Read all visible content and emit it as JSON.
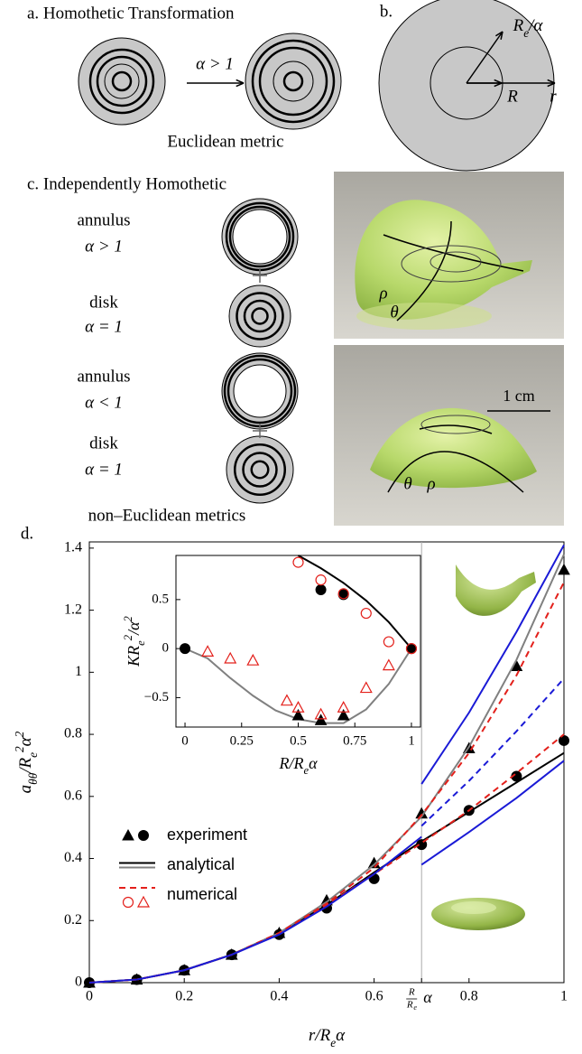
{
  "panel_a": {
    "label": "a. Homothetic Transformation",
    "arrow_label": "α > 1",
    "caption": "Euclidean metric"
  },
  "panel_b": {
    "label": "b.",
    "outer_radius": [
      {
        "t": "R"
      },
      {
        "t": "e",
        "s": "sub"
      },
      {
        "t": "/α"
      }
    ],
    "inner_radius": "R",
    "axis": "r"
  },
  "panel_c": {
    "label": "c. Independently Homothetic",
    "shapes": [
      {
        "name": "annulus",
        "condition": "α > 1"
      },
      {
        "name": "disk",
        "condition": "α = 1"
      },
      {
        "name": "annulus",
        "condition": "α < 1"
      },
      {
        "name": "disk",
        "condition": "α = 1"
      }
    ],
    "caption": "non–Euclidean metrics",
    "scale_bar": "1 cm",
    "photo1_labels": [
      "ρ",
      "θ"
    ],
    "photo2_labels": [
      "θ",
      "ρ"
    ]
  },
  "panel_d": {
    "label": "d."
  },
  "chart_data": [
    {
      "type": "line",
      "xlim": [
        0,
        1
      ],
      "ylim": [
        0,
        1.42
      ],
      "xticks": [
        0,
        0.2,
        0.4,
        0.6,
        0.8,
        1,
        {
          "value": 0.7,
          "label": [
            {
              "t": "R",
              "s": "num"
            },
            {
              "t": "R",
              "s": "den"
            },
            {
              "t": "e",
              "s": "den-sub"
            },
            {
              "t": "α"
            }
          ]
        }
      ],
      "yticks": [
        0,
        0.2,
        0.4,
        0.6,
        0.8,
        1,
        1.2,
        1.4
      ],
      "xlabel": [
        {
          "t": "r/R"
        },
        {
          "t": "e",
          "s": "sub"
        },
        {
          "t": "α"
        }
      ],
      "ylabel": [
        {
          "t": "a"
        },
        {
          "t": "θθ",
          "s": "sub"
        },
        {
          "t": "/R"
        },
        {
          "t": "e",
          "s": "sub"
        },
        {
          "t": "2",
          "s": "sup"
        },
        {
          "t": "α"
        },
        {
          "t": "2",
          "s": "sup"
        }
      ],
      "vline": 0.7,
      "series": [
        {
          "name": "experiment",
          "color": "#000000",
          "marker": "triangle",
          "x": [
            0,
            0.1,
            0.2,
            0.3,
            0.4,
            0.5,
            0.6,
            0.7,
            0.8,
            0.9,
            1
          ],
          "values": [
            0,
            0.01,
            0.04,
            0.09,
            0.16,
            0.265,
            0.385,
            0.545,
            0.755,
            1.02,
            1.33
          ]
        },
        {
          "name": "experiment",
          "color": "#000000",
          "marker": "circle",
          "x": [
            0,
            0.1,
            0.2,
            0.3,
            0.4,
            0.5,
            0.6,
            0.7,
            0.8,
            0.9,
            1
          ],
          "values": [
            0,
            0.01,
            0.04,
            0.09,
            0.155,
            0.24,
            0.335,
            0.445,
            0.555,
            0.665,
            0.78
          ]
        },
        {
          "name": "analytical",
          "color": "#000000",
          "line": true,
          "x": [
            0,
            0.1,
            0.2,
            0.3,
            0.4,
            0.5,
            0.6,
            0.7,
            0.8,
            0.9,
            1
          ],
          "values": [
            0,
            0.01,
            0.04,
            0.09,
            0.16,
            0.25,
            0.355,
            0.455,
            0.55,
            0.645,
            0.74
          ]
        },
        {
          "name": "analytical",
          "color": "#808080",
          "line": true,
          "x": [
            0,
            0.1,
            0.2,
            0.3,
            0.4,
            0.5,
            0.6,
            0.7,
            0.8,
            0.9,
            1
          ],
          "values": [
            0,
            0.01,
            0.04,
            0.09,
            0.16,
            0.26,
            0.38,
            0.535,
            0.76,
            1.04,
            1.38
          ]
        },
        {
          "name": "numerical",
          "color": "#e3201b",
          "line": true,
          "dash": true,
          "x": [
            0,
            0.1,
            0.2,
            0.3,
            0.4,
            0.5,
            0.6,
            0.7,
            0.8,
            0.9,
            1
          ],
          "values": [
            0,
            0.01,
            0.04,
            0.09,
            0.16,
            0.255,
            0.37,
            0.54,
            0.74,
            0.99,
            1.29
          ]
        },
        {
          "name": "numerical",
          "color": "#e3201b",
          "line": true,
          "dash": true,
          "x": [
            0,
            0.1,
            0.2,
            0.3,
            0.4,
            0.5,
            0.6,
            0.7,
            0.8,
            0.9,
            1
          ],
          "values": [
            0,
            0.01,
            0.04,
            0.09,
            0.16,
            0.25,
            0.35,
            0.45,
            0.555,
            0.675,
            0.8
          ]
        },
        {
          "color": "#1a1ad6",
          "line": true,
          "x": [
            0,
            0.1,
            0.2,
            0.3,
            0.4,
            0.5,
            0.6,
            0.7
          ],
          "values": [
            0,
            0.01,
            0.04,
            0.09,
            0.155,
            0.245,
            0.35,
            0.47
          ]
        },
        {
          "color": "#1a1ad6",
          "line": true,
          "x": [
            0.7,
            0.8,
            0.9,
            1
          ],
          "values": [
            0.64,
            0.87,
            1.13,
            1.41
          ]
        },
        {
          "color": "#1a1ad6",
          "line": true,
          "dash": true,
          "x": [
            0.7,
            0.8,
            0.9,
            1
          ],
          "values": [
            0.505,
            0.65,
            0.81,
            0.98
          ]
        },
        {
          "color": "#1a1ad6",
          "line": true,
          "x": [
            0.7,
            0.8,
            0.9,
            1
          ],
          "values": [
            0.38,
            0.485,
            0.595,
            0.715
          ]
        }
      ]
    },
    {
      "type": "line",
      "xlim": [
        -0.04,
        1.04
      ],
      "ylim": [
        -0.8,
        0.95
      ],
      "xticks": [
        0,
        0.25,
        0.5,
        0.75,
        1
      ],
      "yticks": [
        {
          "value": -0.5,
          "label": "−0.5"
        },
        0,
        0.5
      ],
      "xlabel": [
        {
          "t": "R/R"
        },
        {
          "t": "e",
          "s": "sub"
        },
        {
          "t": "α"
        }
      ],
      "ylabel": [
        {
          "t": "KR"
        },
        {
          "t": "e",
          "s": "sub"
        },
        {
          "t": "2",
          "s": "sup"
        },
        {
          "t": "/α"
        },
        {
          "t": "2",
          "s": "sup"
        }
      ],
      "series": [
        {
          "name": "analytical",
          "color": "#000000",
          "line": true,
          "x": [
            0.5,
            0.6,
            0.7,
            0.8,
            0.9,
            1
          ],
          "values": [
            0.95,
            0.82,
            0.67,
            0.49,
            0.27,
            0
          ]
        },
        {
          "name": "analytical",
          "color": "#808080",
          "line": true,
          "x": [
            0,
            0.1,
            0.2,
            0.3,
            0.4,
            0.5,
            0.6,
            0.7,
            0.8,
            0.9,
            1
          ],
          "values": [
            0,
            -0.1,
            -0.3,
            -0.48,
            -0.63,
            -0.72,
            -0.76,
            -0.76,
            -0.62,
            -0.36,
            0
          ]
        },
        {
          "name": "experiment",
          "color": "#000000",
          "marker": "circle",
          "x": [
            0,
            0.6,
            0.7,
            1
          ],
          "values": [
            0,
            0.6,
            0.55,
            0
          ]
        },
        {
          "name": "experiment",
          "color": "#000000",
          "marker": "triangle",
          "x": [
            0.5,
            0.6,
            0.7
          ],
          "values": [
            -0.68,
            -0.73,
            -0.68
          ]
        },
        {
          "name": "numerical",
          "color": "#e3201b",
          "marker": "open-circle",
          "x": [
            0.5,
            0.6,
            0.7,
            0.8,
            0.9,
            1
          ],
          "values": [
            0.88,
            0.7,
            0.56,
            0.36,
            0.07,
            0
          ]
        },
        {
          "name": "numerical",
          "color": "#e3201b",
          "marker": "open-triangle",
          "x": [
            0.1,
            0.2,
            0.3,
            0.45,
            0.5,
            0.6,
            0.7,
            0.8,
            0.9
          ],
          "values": [
            -0.03,
            -0.1,
            -0.12,
            -0.53,
            -0.6,
            -0.67,
            -0.6,
            -0.4,
            -0.17
          ]
        }
      ]
    }
  ]
}
